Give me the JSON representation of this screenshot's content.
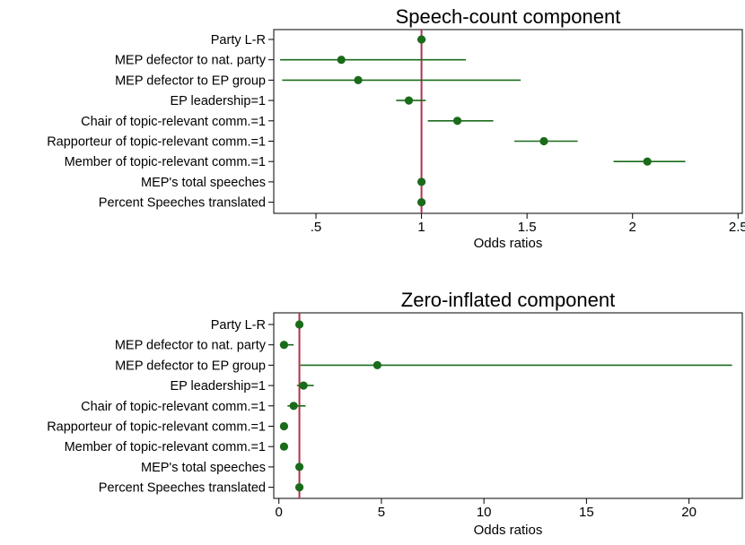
{
  "colors": {
    "point": "#1a6b1a",
    "ci": "#1a6b1a",
    "reference": "#b0324e",
    "axis": "#000000"
  },
  "chart_data": [
    {
      "type": "scatter",
      "title": "Speech-count component",
      "xlabel": "Odds ratios",
      "xlim": [
        0.3,
        2.52
      ],
      "xticks": [
        0.5,
        1,
        1.5,
        2,
        2.5
      ],
      "xtick_labels": [
        ".5",
        "1",
        "1.5",
        "2",
        "2.5"
      ],
      "reference_line": 1,
      "categories": [
        "Party L-R",
        "MEP defector to nat. party",
        "MEP defector to EP group",
        "EP leadership=1",
        "Chair of topic-relevant comm.=1",
        "Rapporteur of topic-relevant comm.=1",
        "Member of topic-relevant comm.=1",
        "MEP's total speeches",
        "Percent Speeches translated"
      ],
      "estimates": [
        1.0,
        0.62,
        0.7,
        0.94,
        1.17,
        1.58,
        2.07,
        1.0,
        1.0
      ],
      "ci_low": [
        0.98,
        0.33,
        0.34,
        0.88,
        1.03,
        1.44,
        1.91,
        1.0,
        1.0
      ],
      "ci_high": [
        1.02,
        1.21,
        1.47,
        1.02,
        1.34,
        1.74,
        2.25,
        1.0,
        1.0
      ]
    },
    {
      "type": "scatter",
      "title": "Zero-inflated component",
      "xlabel": "Odds ratios",
      "xlim": [
        -0.25,
        22.6
      ],
      "xticks": [
        0,
        5,
        10,
        15,
        20
      ],
      "xtick_labels": [
        "0",
        "5",
        "10",
        "15",
        "20"
      ],
      "reference_line": 1,
      "categories": [
        "Party L-R",
        "MEP defector to nat. party",
        "MEP defector to EP group",
        "EP leadership=1",
        "Chair of topic-relevant comm.=1",
        "Rapporteur of topic-relevant comm.=1",
        "Member of topic-relevant comm.=1",
        "MEP's total speeches",
        "Percent Speeches translated"
      ],
      "estimates": [
        1.0,
        0.25,
        4.8,
        1.2,
        0.72,
        0.25,
        0.25,
        1.0,
        1.0
      ],
      "ci_low": [
        1.0,
        0.05,
        1.05,
        0.88,
        0.42,
        0.2,
        0.2,
        1.0,
        1.0
      ],
      "ci_high": [
        1.0,
        0.72,
        22.1,
        1.7,
        1.3,
        0.3,
        0.3,
        1.0,
        1.0
      ]
    }
  ]
}
